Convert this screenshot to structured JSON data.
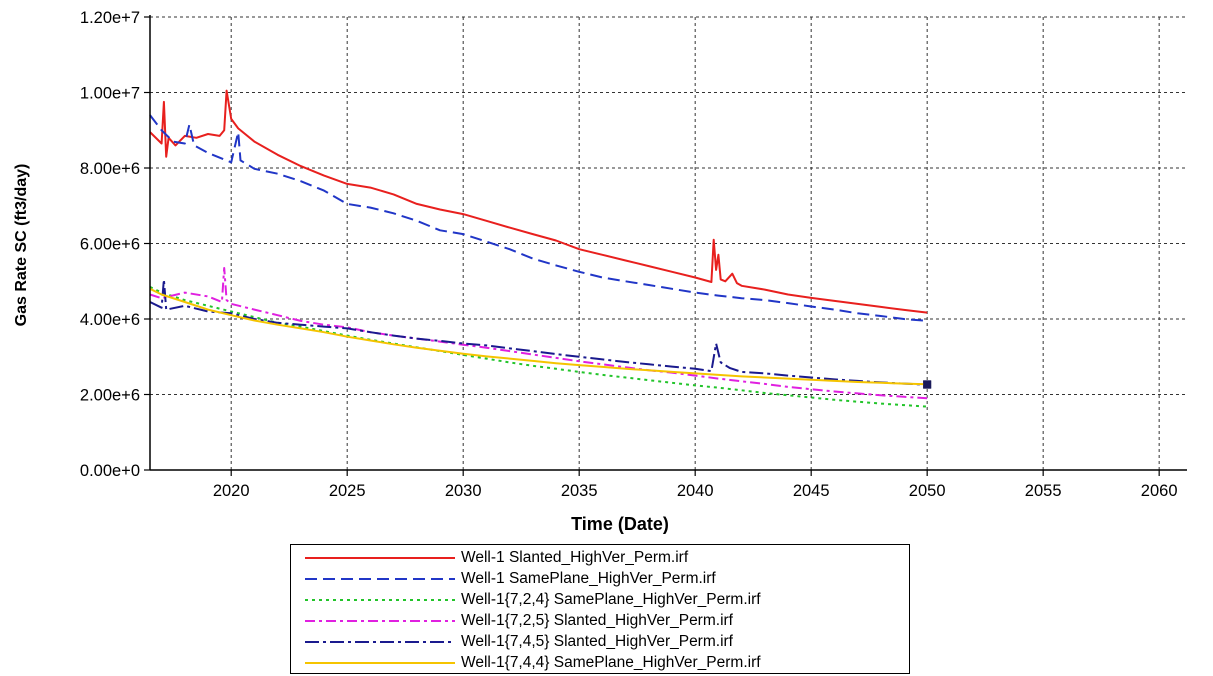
{
  "chart_data": {
    "type": "line",
    "title": "",
    "xlabel": "Time (Date)",
    "ylabel": "Gas Rate SC (ft3/day)",
    "xlim": [
      2016.5,
      2061.2
    ],
    "ylim": [
      0,
      12000000
    ],
    "x_ticks": [
      2020,
      2025,
      2030,
      2035,
      2040,
      2045,
      2050,
      2055,
      2060
    ],
    "x_tick_labels": [
      "2020",
      "2025",
      "2030",
      "2035",
      "2040",
      "2045",
      "2050",
      "2055",
      "2060"
    ],
    "y_ticks": [
      0,
      2000000,
      4000000,
      6000000,
      8000000,
      10000000,
      12000000
    ],
    "y_tick_labels": [
      "0.00e+0",
      "2.00e+6",
      "4.00e+6",
      "6.00e+6",
      "8.00e+6",
      "1.00e+7",
      "1.20e+7"
    ],
    "grid": true,
    "legend_position": "below",
    "series": [
      {
        "name": "Well-1 Slanted_HighVer_Perm.irf",
        "color": "#e8201e",
        "dash": "solid",
        "x": [
          2016.5,
          2017.0,
          2017.1,
          2017.2,
          2017.3,
          2017.6,
          2018.0,
          2018.5,
          2019.0,
          2019.5,
          2019.7,
          2019.8,
          2020.0,
          2020.3,
          2021.0,
          2022.0,
          2023.0,
          2024.0,
          2025.0,
          2026.0,
          2027.0,
          2028.0,
          2029.0,
          2030.0,
          2031.0,
          2032.0,
          2033.0,
          2034.0,
          2035.0,
          2036.0,
          2037.0,
          2038.0,
          2039.0,
          2040.0,
          2040.7,
          2040.8,
          2040.9,
          2041.0,
          2041.1,
          2041.3,
          2041.6,
          2041.8,
          2042.0,
          2043.0,
          2044.0,
          2045.0,
          2046.0,
          2047.0,
          2048.0,
          2049.0,
          2050.0
        ],
        "y": [
          8950000,
          8650000,
          9750000,
          8300000,
          8800000,
          8600000,
          8850000,
          8800000,
          8900000,
          8850000,
          9000000,
          10050000,
          9300000,
          9050000,
          8700000,
          8350000,
          8050000,
          7800000,
          7580000,
          7480000,
          7300000,
          7050000,
          6900000,
          6780000,
          6600000,
          6420000,
          6250000,
          6080000,
          5850000,
          5700000,
          5550000,
          5400000,
          5250000,
          5100000,
          4980000,
          6100000,
          5300000,
          5700000,
          5050000,
          5000000,
          5200000,
          4950000,
          4880000,
          4780000,
          4650000,
          4560000,
          4480000,
          4400000,
          4320000,
          4240000,
          4170000
        ]
      },
      {
        "name": "Well-1 SamePlane_HighVer_Perm.irf",
        "color": "#2136c7",
        "dash": "long",
        "x": [
          2016.5,
          2017.0,
          2017.5,
          2018.0,
          2018.2,
          2018.4,
          2019.0,
          2020.0,
          2020.3,
          2020.4,
          2021.0,
          2022.0,
          2023.0,
          2024.0,
          2025.0,
          2026.0,
          2027.0,
          2028.0,
          2029.0,
          2030.0,
          2031.0,
          2032.0,
          2033.0,
          2034.0,
          2035.0,
          2036.0,
          2037.0,
          2038.0,
          2039.0,
          2040.0,
          2041.0,
          2042.0,
          2043.0,
          2044.0,
          2045.0,
          2046.0,
          2047.0,
          2048.0,
          2049.0,
          2050.0
        ],
        "y": [
          9400000,
          9000000,
          8700000,
          8650000,
          9150000,
          8600000,
          8400000,
          8150000,
          8950000,
          8200000,
          7980000,
          7850000,
          7650000,
          7400000,
          7050000,
          6950000,
          6800000,
          6600000,
          6350000,
          6250000,
          6050000,
          5850000,
          5600000,
          5420000,
          5250000,
          5100000,
          5000000,
          4900000,
          4800000,
          4700000,
          4620000,
          4550000,
          4500000,
          4420000,
          4330000,
          4250000,
          4150000,
          4080000,
          4000000,
          3950000
        ]
      },
      {
        "name": "Well-1{7,2,4} SamePlane_HighVer_Perm.irf",
        "color": "#22c42a",
        "dash": "dot",
        "x": [
          2016.5,
          2017.0,
          2018.0,
          2019.0,
          2020.0,
          2021.0,
          2022.0,
          2023.0,
          2024.0,
          2025.0,
          2026.0,
          2027.0,
          2028.0,
          2029.0,
          2030.0,
          2031.0,
          2032.0,
          2033.0,
          2034.0,
          2035.0,
          2036.0,
          2037.0,
          2038.0,
          2039.0,
          2040.0,
          2041.0,
          2042.0,
          2043.0,
          2044.0,
          2045.0,
          2046.0,
          2047.0,
          2048.0,
          2049.0,
          2050.0
        ],
        "y": [
          4850000,
          4700000,
          4500000,
          4350000,
          4200000,
          4050000,
          3900000,
          3800000,
          3680000,
          3560000,
          3450000,
          3350000,
          3250000,
          3150000,
          3050000,
          2950000,
          2850000,
          2760000,
          2680000,
          2600000,
          2520000,
          2450000,
          2380000,
          2310000,
          2240000,
          2180000,
          2110000,
          2040000,
          1980000,
          1920000,
          1860000,
          1810000,
          1760000,
          1720000,
          1680000
        ]
      },
      {
        "name": "Well-1{7,2,5} Slanted_HighVer_Perm.irf",
        "color": "#e020e0",
        "dash": "dashdot",
        "x": [
          2016.5,
          2017.0,
          2018.0,
          2019.0,
          2019.6,
          2019.7,
          2019.8,
          2020.0,
          2021.0,
          2022.0,
          2023.0,
          2024.0,
          2025.0,
          2026.0,
          2027.0,
          2028.0,
          2029.0,
          2030.0,
          2031.0,
          2032.0,
          2033.0,
          2034.0,
          2035.0,
          2036.0,
          2037.0,
          2038.0,
          2039.0,
          2040.0,
          2041.0,
          2042.0,
          2043.0,
          2044.0,
          2045.0,
          2046.0,
          2047.0,
          2048.0,
          2049.0,
          2050.0
        ],
        "y": [
          4650000,
          4550000,
          4700000,
          4600000,
          4450000,
          5350000,
          4500000,
          4400000,
          4250000,
          4100000,
          3950000,
          3850000,
          3780000,
          3650000,
          3560000,
          3480000,
          3400000,
          3320000,
          3240000,
          3150000,
          3060000,
          2970000,
          2880000,
          2800000,
          2720000,
          2640000,
          2580000,
          2500000,
          2420000,
          2350000,
          2280000,
          2200000,
          2140000,
          2080000,
          2030000,
          1980000,
          1940000,
          1900000
        ]
      },
      {
        "name": "Well-1{7,4,5} Slanted_HighVer_Perm.irf",
        "color": "#1a1a8e",
        "dash": "dashdotlong",
        "x": [
          2016.5,
          2017.0,
          2017.1,
          2017.2,
          2018.0,
          2019.0,
          2020.0,
          2021.0,
          2022.0,
          2023.0,
          2024.0,
          2025.0,
          2026.0,
          2027.0,
          2028.0,
          2029.0,
          2030.0,
          2031.0,
          2032.0,
          2033.0,
          2034.0,
          2035.0,
          2036.0,
          2037.0,
          2038.0,
          2039.0,
          2040.0,
          2040.7,
          2040.9,
          2041.1,
          2041.5,
          2042.0,
          2043.0,
          2044.0,
          2045.0,
          2046.0,
          2047.0,
          2048.0,
          2049.0,
          2050.0
        ],
        "y": [
          4450000,
          4300000,
          5050000,
          4250000,
          4350000,
          4200000,
          4150000,
          4000000,
          3900000,
          3850000,
          3800000,
          3750000,
          3650000,
          3560000,
          3480000,
          3420000,
          3350000,
          3300000,
          3220000,
          3150000,
          3070000,
          3000000,
          2930000,
          2860000,
          2800000,
          2740000,
          2680000,
          2620000,
          3350000,
          2850000,
          2700000,
          2600000,
          2560000,
          2500000,
          2450000,
          2400000,
          2360000,
          2320000,
          2290000,
          2260000
        ]
      },
      {
        "name": "Well-1{7,4,4} SamePlane_HighVer_Perm.irf",
        "color": "#f5c400",
        "dash": "solid",
        "x": [
          2016.5,
          2017.0,
          2018.0,
          2019.0,
          2020.0,
          2021.0,
          2022.0,
          2023.0,
          2024.0,
          2025.0,
          2026.0,
          2027.0,
          2028.0,
          2029.0,
          2030.0,
          2031.0,
          2032.0,
          2033.0,
          2034.0,
          2035.0,
          2036.0,
          2037.0,
          2038.0,
          2039.0,
          2040.0,
          2041.0,
          2042.0,
          2043.0,
          2044.0,
          2045.0,
          2046.0,
          2047.0,
          2048.0,
          2049.0,
          2050.0
        ],
        "y": [
          4800000,
          4650000,
          4450000,
          4250000,
          4100000,
          3960000,
          3850000,
          3750000,
          3650000,
          3530000,
          3430000,
          3330000,
          3240000,
          3160000,
          3080000,
          3010000,
          2950000,
          2890000,
          2830000,
          2780000,
          2730000,
          2680000,
          2640000,
          2600000,
          2560000,
          2520000,
          2480000,
          2450000,
          2420000,
          2390000,
          2360000,
          2330000,
          2310000,
          2290000,
          2270000
        ]
      }
    ]
  }
}
